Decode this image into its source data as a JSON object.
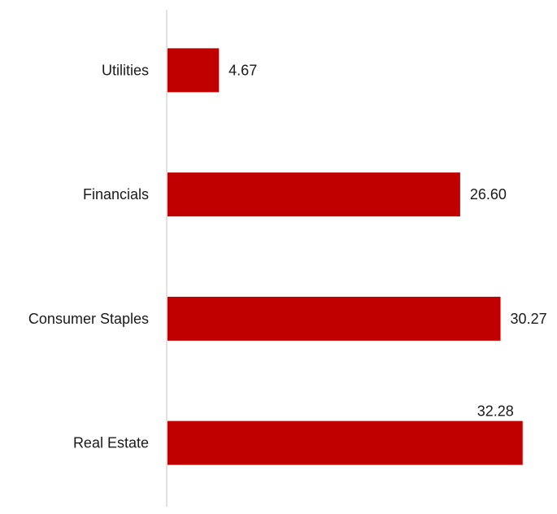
{
  "chart_data": {
    "type": "bar",
    "orientation": "horizontal",
    "title": "",
    "xlabel": "",
    "ylabel": "",
    "categories": [
      "Utilities",
      "Financials",
      "Consumer Staples",
      "Real Estate"
    ],
    "values": [
      4.67,
      26.6,
      30.27,
      32.28
    ],
    "value_labels": [
      "4.67",
      "26.60",
      "30.27",
      "32.28"
    ],
    "bar_color": "#C00000",
    "axis_color": "#D9D9D9",
    "xlim": [
      0,
      34
    ],
    "grid": false,
    "legend": "none"
  }
}
